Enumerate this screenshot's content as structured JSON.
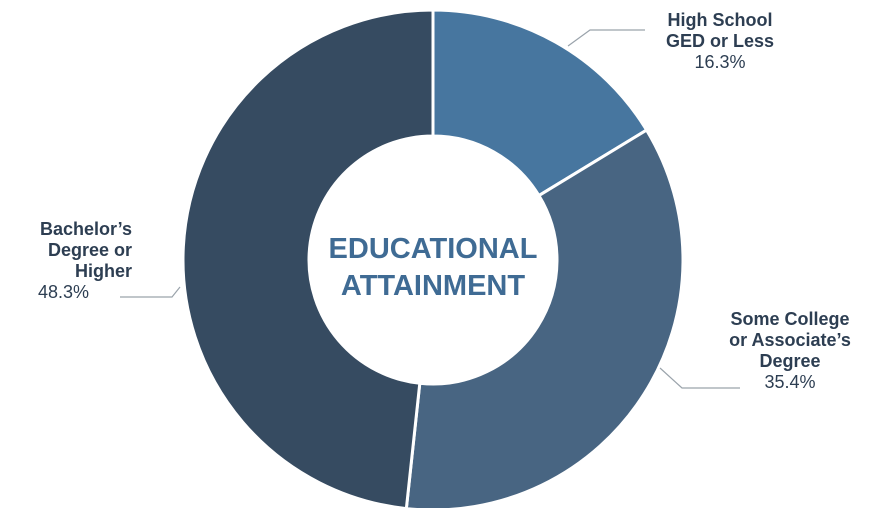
{
  "chart_data": {
    "type": "pie",
    "title": "EDUCATIONAL ATTAINMENT",
    "center_title_lines": [
      "EDUCATIONAL",
      "ATTAINMENT"
    ],
    "slices": [
      {
        "label_lines": [
          "High School",
          "GED or Less"
        ],
        "value": 16.3,
        "value_label": "16.3%",
        "color": "#47769f"
      },
      {
        "label_lines": [
          "Some College",
          "or Associate’s",
          "Degree"
        ],
        "value": 35.4,
        "value_label": "35.4%",
        "color": "#486582"
      },
      {
        "label_lines": [
          "Bachelor’s",
          "Degree or",
          "Higher"
        ],
        "value": 48.3,
        "value_label": "48.3%",
        "color": "#364b61"
      }
    ],
    "legend": "none"
  }
}
